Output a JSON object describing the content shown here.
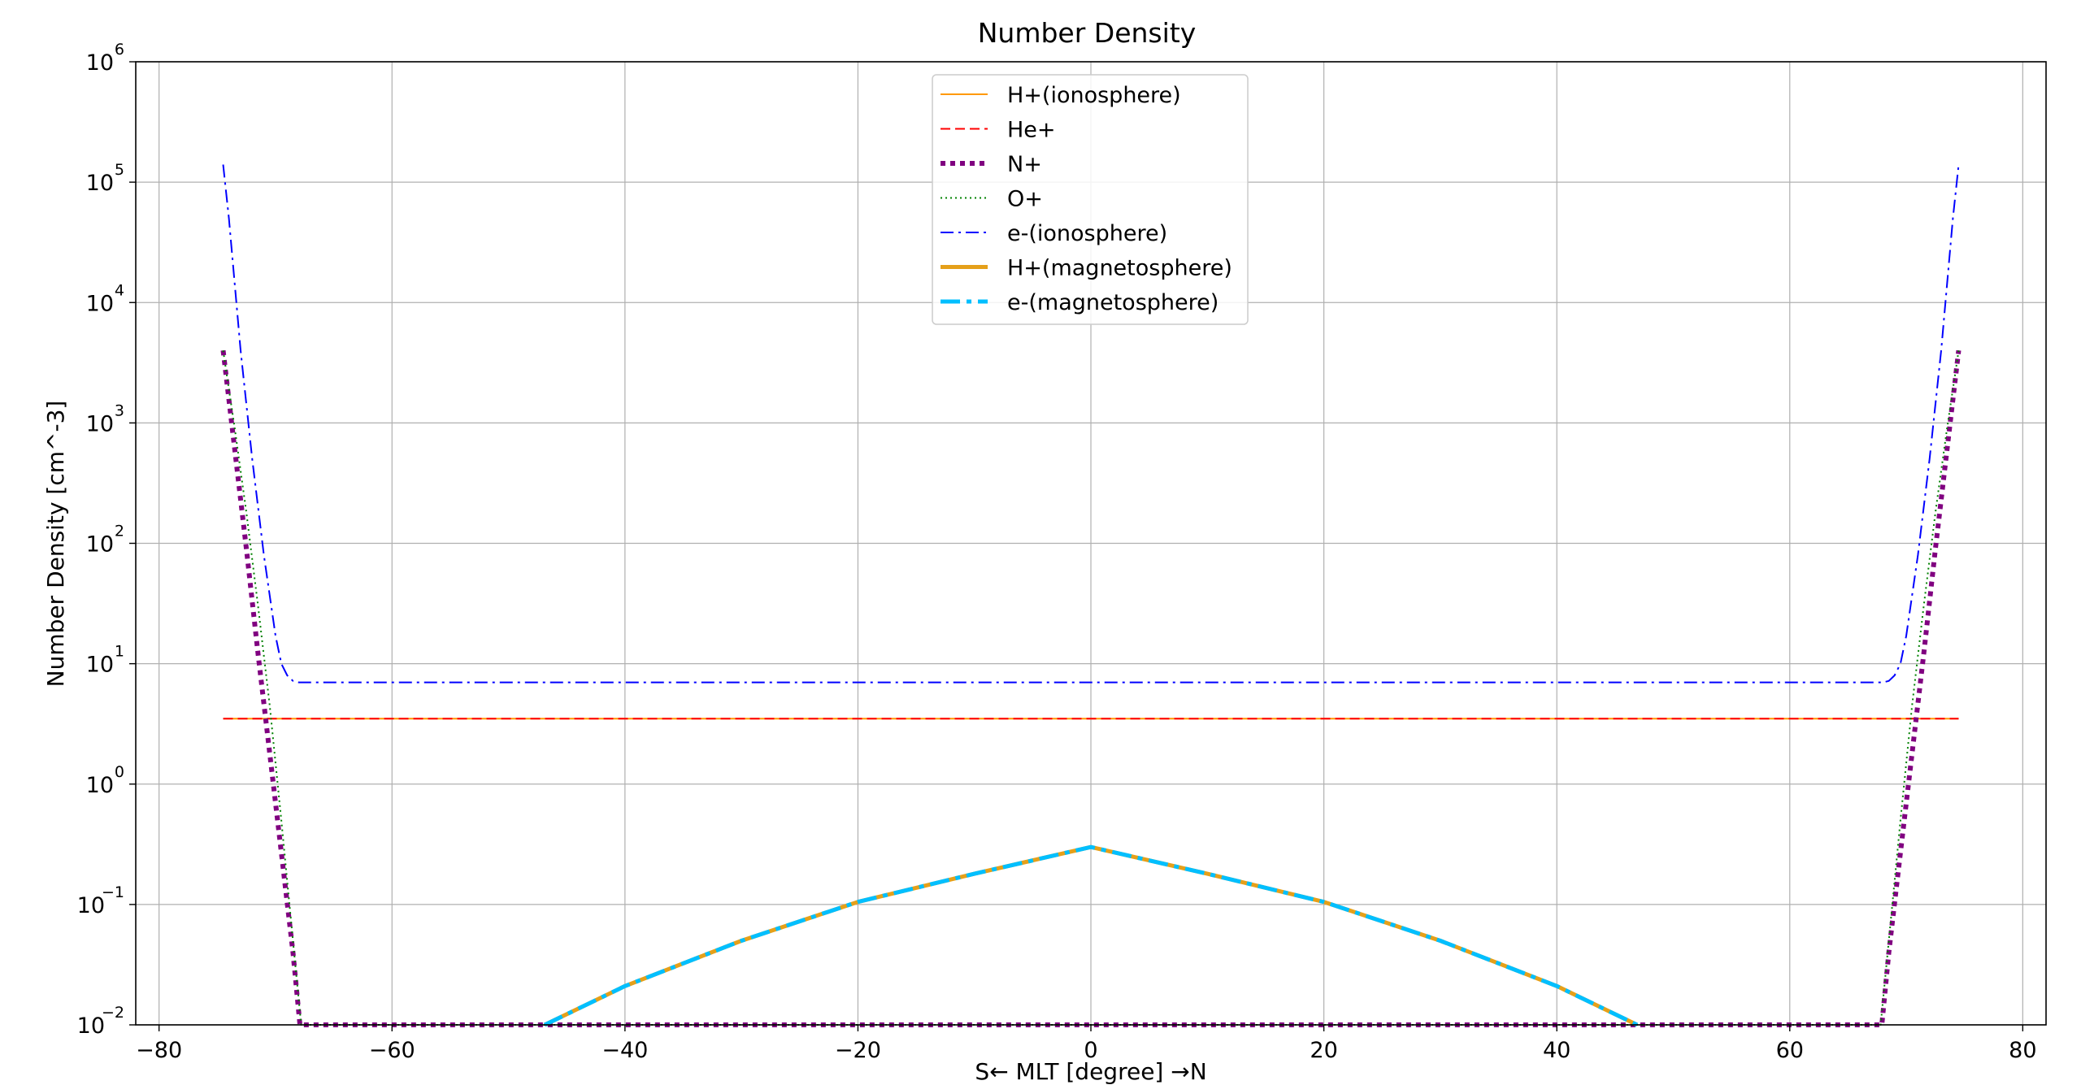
{
  "chart_data": {
    "type": "line",
    "title": "Number Density",
    "xlabel": "S← MLT [degree] →N",
    "ylabel": "Number Density [cm^-3]",
    "xlim": [
      -82,
      82
    ],
    "ylim": [
      0.01,
      1000000
    ],
    "yscale": "log",
    "grid": true,
    "legend_position": "upper center",
    "xticks": [
      -80,
      -60,
      -40,
      -20,
      0,
      20,
      40,
      60,
      80
    ],
    "xtick_labels": [
      "−80",
      "−60",
      "−40",
      "−20",
      "0",
      "20",
      "40",
      "60",
      "80"
    ],
    "yticks": [
      0.01,
      0.1,
      1,
      10,
      100,
      1000,
      10000,
      100000,
      1000000
    ],
    "ytick_labels": [
      {
        "base": "10",
        "exp": "−2"
      },
      {
        "base": "10",
        "exp": "−1"
      },
      {
        "base": "10",
        "exp": "0"
      },
      {
        "base": "10",
        "exp": "1"
      },
      {
        "base": "10",
        "exp": "2"
      },
      {
        "base": "10",
        "exp": "3"
      },
      {
        "base": "10",
        "exp": "4"
      },
      {
        "base": "10",
        "exp": "5"
      },
      {
        "base": "10",
        "exp": "6"
      }
    ],
    "series": [
      {
        "name": "H+(ionosphere)",
        "color": "#ff9900",
        "style": "solid",
        "width": 2,
        "x": [
          -74.5,
          74.5
        ],
        "y": [
          3.5,
          3.5
        ]
      },
      {
        "name": "He+",
        "color": "#ff0000",
        "style": "dashed",
        "width": 2,
        "x": [
          -74.5,
          74.5
        ],
        "y": [
          3.5,
          3.5
        ]
      },
      {
        "name": "N+",
        "color": "#800080",
        "style": "dotted-thick",
        "width": 6,
        "x": [
          -74.5,
          -73.5,
          -72.5,
          -71.5,
          -70.5,
          -69.5,
          -68.5,
          -67.9,
          67.9,
          68.5,
          69.5,
          70.5,
          71.5,
          72.5,
          73.5,
          74.5
        ],
        "y": [
          4000,
          600,
          90,
          12,
          1.8,
          0.27,
          0.04,
          0.01,
          0.01,
          0.04,
          0.27,
          1.8,
          12,
          90,
          600,
          4000
        ]
      },
      {
        "name": "O+",
        "color": "#008000",
        "style": "dotted",
        "width": 2,
        "x": [
          -74.5,
          -73.5,
          -72.5,
          -71.5,
          -70.5,
          -69.5,
          -68.5,
          -67.8,
          67.8,
          68.5,
          69.5,
          70.5,
          71.5,
          72.5,
          73.5,
          74.5
        ],
        "y": [
          4000,
          900,
          180,
          30,
          4.5,
          0.5,
          0.05,
          0.01,
          0.01,
          0.05,
          0.5,
          4.5,
          30,
          180,
          900,
          4000
        ]
      },
      {
        "name": "e-(ionosphere)",
        "color": "#0000ff",
        "style": "dashdot",
        "width": 2,
        "x": [
          -74.5,
          -74,
          -73,
          -72,
          -71,
          -70,
          -69.5,
          -69,
          -68.5,
          -68,
          -60,
          -40,
          -20,
          0,
          20,
          40,
          60,
          68,
          68.5,
          69,
          69.5,
          70,
          71,
          72,
          73,
          74,
          74.5
        ],
        "y": [
          140000,
          50000,
          4000,
          500,
          80,
          17,
          10,
          8,
          7.2,
          7,
          7,
          7,
          7,
          7,
          7,
          7,
          7,
          7,
          7.2,
          8,
          10,
          17,
          80,
          500,
          4000,
          50000,
          140000
        ]
      },
      {
        "name": "H+(magnetosphere)",
        "color": "#e5a01a",
        "style": "solid",
        "width": 5,
        "x": [
          -46.9,
          -40,
          -30,
          -20,
          -10,
          0,
          10,
          20,
          30,
          40,
          46.9
        ],
        "y": [
          0.01,
          0.021,
          0.05,
          0.105,
          0.18,
          0.3,
          0.18,
          0.105,
          0.05,
          0.021,
          0.01
        ]
      },
      {
        "name": "e-(magnetosphere)",
        "color": "#00bfff",
        "style": "dashdot-thick",
        "width": 5,
        "x": [
          -46.9,
          -40,
          -30,
          -20,
          -10,
          0,
          10,
          20,
          30,
          40,
          46.9
        ],
        "y": [
          0.01,
          0.021,
          0.05,
          0.105,
          0.18,
          0.3,
          0.18,
          0.105,
          0.05,
          0.021,
          0.01
        ]
      }
    ]
  }
}
